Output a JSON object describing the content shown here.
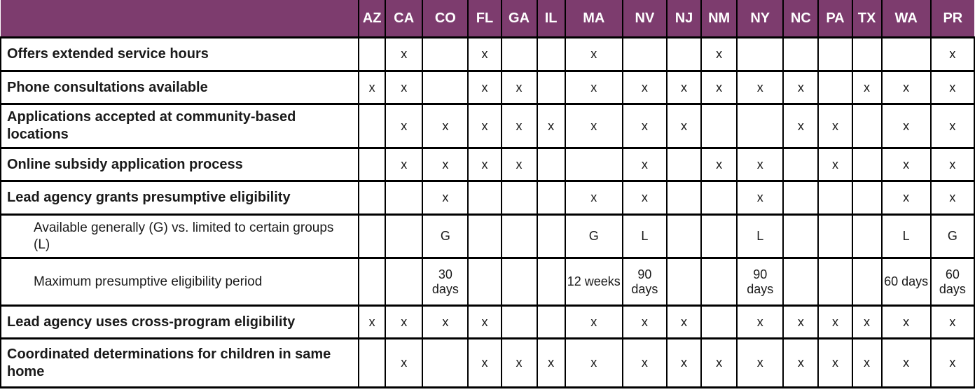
{
  "theme": {
    "header_bg": "#7D3C6E",
    "header_text": "#ffffff",
    "border_color": "#000000",
    "body_text": "#1a1a1a"
  },
  "table": {
    "corner_label": "",
    "columns": [
      "AZ",
      "CA",
      "CO",
      "FL",
      "GA",
      "IL",
      "MA",
      "NV",
      "NJ",
      "NM",
      "NY",
      "NC",
      "PA",
      "TX",
      "WA",
      "PR"
    ],
    "rows": [
      {
        "label": "Offers extended service hours",
        "sub": false,
        "cells": [
          "",
          "x",
          "",
          "x",
          "",
          "",
          "x",
          "",
          "",
          "x",
          "",
          "",
          "",
          "",
          "",
          "x"
        ]
      },
      {
        "label": "Phone consultations available",
        "sub": false,
        "cells": [
          "x",
          "x",
          "",
          "x",
          "x",
          "",
          "x",
          "x",
          "x",
          "x",
          "x",
          "x",
          "",
          "x",
          "x",
          "x"
        ]
      },
      {
        "label": "Applications accepted at community-based locations",
        "sub": false,
        "cells": [
          "",
          "x",
          "x",
          "x",
          "x",
          "x",
          "x",
          "x",
          "x",
          "",
          "",
          "x",
          "x",
          "",
          "x",
          "x"
        ]
      },
      {
        "label": "Online subsidy application process",
        "sub": false,
        "cells": [
          "",
          "x",
          "x",
          "x",
          "x",
          "",
          "",
          "x",
          "",
          "x",
          "x",
          "",
          "x",
          "",
          "x",
          "x"
        ]
      },
      {
        "label": "Lead agency grants presumptive eligibility",
        "sub": false,
        "cells": [
          "",
          "",
          "x",
          "",
          "",
          "",
          "x",
          "x",
          "",
          "",
          "x",
          "",
          "",
          "",
          "x",
          "x"
        ]
      },
      {
        "label": "Available generally (G) vs. limited to certain groups (L)",
        "sub": true,
        "cells": [
          "",
          "",
          "G",
          "",
          "",
          "",
          "G",
          "L",
          "",
          "",
          "L",
          "",
          "",
          "",
          "L",
          "G"
        ]
      },
      {
        "label": "Maximum presumptive eligibility period",
        "sub": true,
        "cells": [
          "",
          "",
          "30 days",
          "",
          "",
          "",
          "12 weeks",
          "90 days",
          "",
          "",
          "90 days",
          "",
          "",
          "",
          "60 days",
          "60 days"
        ]
      },
      {
        "label": "Lead agency uses cross-program eligibility",
        "sub": false,
        "cells": [
          "x",
          "x",
          "x",
          "x",
          "",
          "",
          "x",
          "x",
          "x",
          "",
          "x",
          "x",
          "x",
          "x",
          "x",
          "x"
        ]
      },
      {
        "label": "Coordinated determinations for children in same home",
        "sub": false,
        "cells": [
          "",
          "x",
          "",
          "x",
          "x",
          "x",
          "x",
          "x",
          "x",
          "x",
          "x",
          "x",
          "x",
          "x",
          "x",
          "x"
        ]
      }
    ]
  }
}
